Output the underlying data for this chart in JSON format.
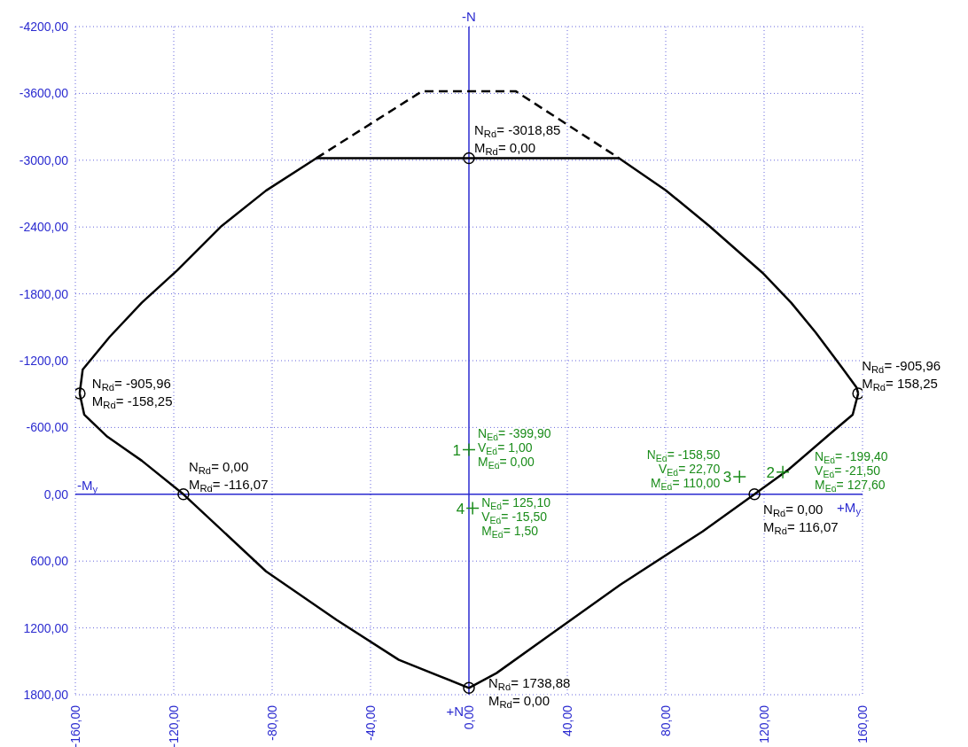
{
  "chart_data": {
    "type": "line",
    "series": [
      {
        "color": "#000000",
        "line_style": "solid",
        "marker": "none",
        "x": [
          -158.25,
          -157,
          -146,
          -133,
          -118.6,
          -100.5,
          -82.5,
          -62,
          61,
          80,
          97.7,
          119.3,
          131,
          140.9,
          151.7,
          157.5,
          158.25
        ],
        "values": [
          -905.96,
          -1121,
          -1415,
          -1720,
          -2011,
          -2410,
          -2727,
          -3018.85,
          -3018.85,
          -2730,
          -2410,
          -1990,
          -1720,
          -1455,
          -1137,
          -962,
          -905.96
        ]
      },
      {
        "color": "#000000",
        "line_style": "solid",
        "marker": "none",
        "x": [
          -158.25,
          -156.4,
          -147,
          -133,
          -116.07,
          -82.5,
          -53.7,
          -28.5,
          0,
          11.2,
          32.8,
          61.6,
          95,
          116.07,
          130,
          148,
          156,
          158.25
        ],
        "values": [
          -905.96,
          -716,
          -517,
          -302,
          0,
          692,
          1130,
          1487,
          1738.88,
          1606,
          1264,
          811,
          334,
          0,
          -223,
          -565,
          -715,
          -905.96
        ]
      },
      {
        "color": "#000000",
        "line_style": "dashed",
        "marker": "none",
        "x": [
          -62,
          -19,
          19,
          61
        ],
        "values": [
          -3018.85,
          -3620,
          -3620,
          -3018.85
        ]
      },
      {
        "type": "scatter",
        "color": "#000000",
        "marker": "circle",
        "x": [
          0,
          -158.25,
          158.25,
          -116.07,
          116.07,
          0
        ],
        "values": [
          -3018.85,
          -905.96,
          -905.96,
          0,
          0,
          1738.88
        ]
      },
      {
        "type": "scatter",
        "name": "1",
        "color": "#1a8c1a",
        "marker": "cross",
        "x": [
          0
        ],
        "values": [
          -399.9
        ]
      },
      {
        "type": "scatter",
        "name": "2",
        "color": "#1a8c1a",
        "marker": "cross",
        "x": [
          127.6
        ],
        "values": [
          -199.4
        ]
      },
      {
        "type": "scatter",
        "name": "3",
        "color": "#1a8c1a",
        "marker": "cross",
        "x": [
          110
        ],
        "values": [
          -158.5
        ]
      },
      {
        "type": "scatter",
        "name": "4",
        "color": "#1a8c1a",
        "marker": "cross",
        "x": [
          1.5
        ],
        "values": [
          125.1
        ]
      }
    ],
    "xlim": [
      -160,
      160
    ],
    "xticks": [
      {
        "value": -160,
        "label": "-160,00"
      },
      {
        "value": -120,
        "label": "-120,00"
      },
      {
        "value": -80,
        "label": "-80,00"
      },
      {
        "value": -40,
        "label": "-40,00"
      },
      {
        "value": 0,
        "label": "0,00"
      },
      {
        "value": 40,
        "label": "40,00"
      },
      {
        "value": 80,
        "label": "80,00"
      },
      {
        "value": 120,
        "label": "120,00"
      },
      {
        "value": 160,
        "label": "160,00"
      }
    ],
    "ylim": [
      1800,
      -4200
    ],
    "yticks": [
      {
        "value": -4200,
        "label": "-4200,00"
      },
      {
        "value": -3600,
        "label": "-3600,00"
      },
      {
        "value": -3000,
        "label": "-3000,00"
      },
      {
        "value": -2400,
        "label": "-2400,00"
      },
      {
        "value": -1800,
        "label": "-1800,00"
      },
      {
        "value": -1200,
        "label": "-1200,00"
      },
      {
        "value": -600,
        "label": "-600,00"
      },
      {
        "value": 0,
        "label": "0,00"
      },
      {
        "value": 600,
        "label": "600,00"
      },
      {
        "value": 1200,
        "label": "1200,00"
      },
      {
        "value": 1800,
        "label": "1800,00"
      }
    ],
    "grid": true,
    "annotations": [
      {
        "text": "N$_{Rd}$= -3018,85\nM$_{Rd}$= 0,00",
        "x": 0,
        "y": -3018.85
      },
      {
        "text": "N$_{Rd}$= -905,96\nM$_{Rd}$= -158,25",
        "x": -158.25,
        "y": -905.96
      },
      {
        "text": "N$_{Rd}$= -905,96\nM$_{Rd}$= 158,25",
        "x": 158.25,
        "y": -905.96
      },
      {
        "text": "N$_{Rd}$= 0,00\nM$_{Rd}$= -116,07",
        "x": -116.07,
        "y": 0
      },
      {
        "text": "N$_{Rd}$= 0,00\nM$_{Rd}$= 116,07",
        "x": 116.07,
        "y": 0
      },
      {
        "text": "N$_{Rd}$= 1738,88\nM$_{Rd}$= 0,00",
        "x": 0,
        "y": 1738.88
      },
      {
        "text": "N$_{Ed}$= -399,90",
        "x": 0,
        "y": -399.9
      },
      {
        "text": "V$_{Ed}$= 1,00",
        "x": 0,
        "y": -399.9
      },
      {
        "text": "M$_{Ed}$= 0,00",
        "x": 0,
        "y": -399.9
      },
      {
        "text": "N$_{Ed}$= -199,40",
        "x": 127.6,
        "y": -199.4
      },
      {
        "text": "V$_{Ed}$= -21,50",
        "x": 127.6,
        "y": -199.4
      },
      {
        "text": "M$_{Ed}$= 127,60",
        "x": 127.6,
        "y": -199.4
      },
      {
        "text": "N$_{Ed}$= -158,50",
        "x": 110,
        "y": -158.5
      },
      {
        "text": "V$_{Ed}$= 22,70",
        "x": 110,
        "y": -158.5
      },
      {
        "text": "M$_{Ed}$= 110,00",
        "x": 110,
        "y": -158.5
      },
      {
        "text": "N$_{Ed}$= 125,10",
        "x": 1.5,
        "y": 125.1
      },
      {
        "text": "V$_{Ed}$= -15,50",
        "x": 1.5,
        "y": 125.1
      },
      {
        "text": "M$_{Ed}$= 1,50",
        "x": 1.5,
        "y": 125.1
      },
      "-N",
      "+N",
      "-M$_{y}$",
      "+M$_{y}$"
    ]
  }
}
